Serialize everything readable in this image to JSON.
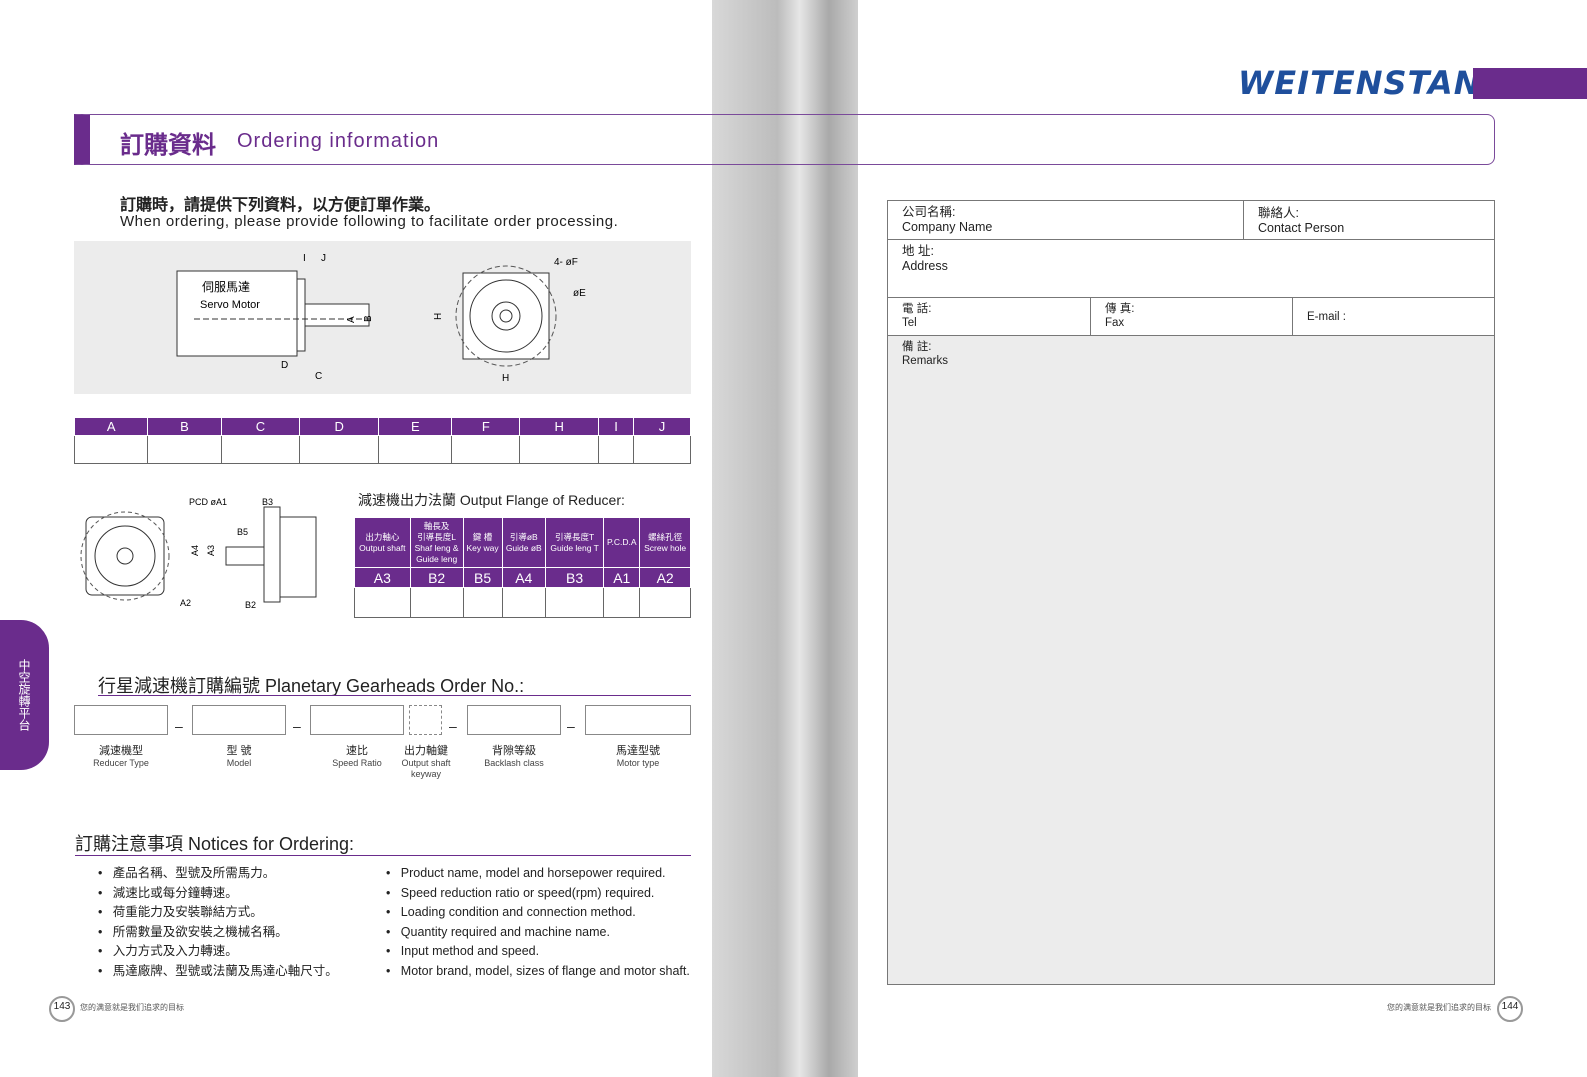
{
  "brand": {
    "logo": "WEITENSTAN",
    "color": "#6a2c8c"
  },
  "header": {
    "zh": "訂購資料",
    "en": "Ordering information"
  },
  "intro": {
    "zh": "訂購時，請提供下列資料，以方便訂單作業。",
    "en": "When ordering, please provide following to facilitate order processing."
  },
  "diagram": {
    "motor_zh": "伺服馬達",
    "motor_en": "Servo Motor",
    "labels": [
      "I",
      "J",
      "A",
      "B",
      "D",
      "C",
      "H",
      "H",
      "4- øF",
      "øE"
    ]
  },
  "dims": {
    "headers": [
      "A",
      "B",
      "C",
      "D",
      "E",
      "F",
      "H",
      "I",
      "J"
    ]
  },
  "flange_diagram": {
    "labels": [
      "PCD øA1",
      "B3",
      "B5",
      "A4",
      "A3",
      "A2",
      "B2"
    ]
  },
  "flange": {
    "title": "減速機出力法蘭  Output Flange of Reducer:",
    "headers": [
      [
        "出力軸心",
        "Output shaft"
      ],
      [
        "軸長及",
        "引導長度L",
        "Shaf leng &",
        "Guide leng"
      ],
      [
        "鍵  槽",
        "Key way"
      ],
      [
        "引導øB",
        "Guide øB"
      ],
      [
        "引導長度T",
        "Guide leng T"
      ],
      [
        "P.C.D.A"
      ],
      [
        "螺絲孔徑",
        "Screw hole"
      ]
    ],
    "codes": [
      "A3",
      "B2",
      "B5",
      "A4",
      "B3",
      "A1",
      "A2"
    ]
  },
  "order": {
    "title": "行星減速機訂購編號 Planetary Gearheads Order No.:",
    "separator": "–",
    "fields": [
      {
        "zh": "減速機型",
        "en": "Reducer Type"
      },
      {
        "zh": "型 號",
        "en": "Model"
      },
      {
        "zh": "速比",
        "en": "Speed Ratio"
      },
      {
        "zh": "出力軸鍵",
        "en": "Output shaft keyway"
      },
      {
        "zh": "背隙等級",
        "en": "Backlash class"
      },
      {
        "zh": "馬達型號",
        "en": "Motor type"
      }
    ]
  },
  "notices": {
    "title": "訂購注意事項  Notices for Ordering:",
    "zh": [
      "產品名稱、型號及所需馬力。",
      "減速比或每分鐘轉速。",
      "荷重能力及安裝聯結方式。",
      "所需數量及欲安裝之機械名稱。",
      "入力方式及入力轉速。",
      "馬達廠牌、型號或法蘭及馬達心軸尺寸。"
    ],
    "en": [
      "Product name, model and horsepower required.",
      "Speed reduction ratio or speed(rpm) required.",
      "Loading condition and connection method.",
      "Quantity required and machine name.",
      "Input method and speed.",
      "Motor brand, model, sizes of flange and motor shaft."
    ]
  },
  "side_tab": "中空旋轉平台",
  "form": {
    "company_zh": "公司名稱:",
    "company_en": "Company Name",
    "contact_zh": "聯絡人:",
    "contact_en": "Contact Person",
    "address_zh": "地 址:",
    "address_en": "Address",
    "tel_zh": "電 話:",
    "tel_en": "Tel",
    "fax_zh": "傳 真:",
    "fax_en": "Fax",
    "email": "E-mail :",
    "remarks_zh": "備 註:",
    "remarks_en": "Remarks"
  },
  "footer": {
    "left_page": "143",
    "right_page": "144",
    "slogan": "您的满意就是我们追求的目标"
  }
}
